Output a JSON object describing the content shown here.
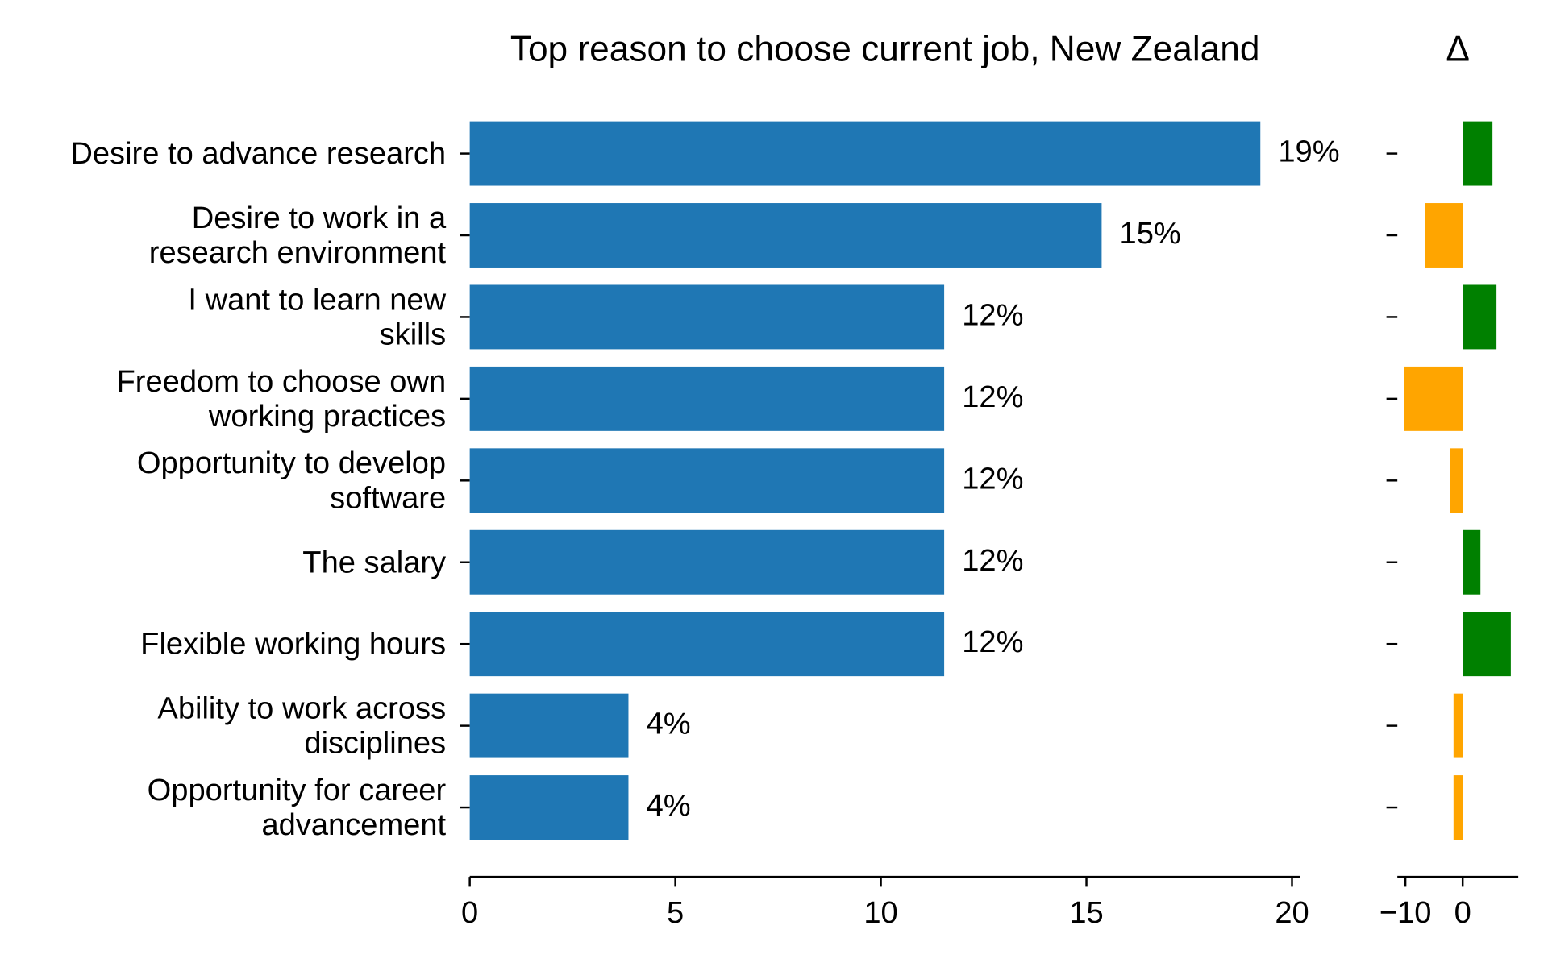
{
  "chart_data": [
    {
      "type": "hbar",
      "title": "Top reason to choose current job, New Zealand",
      "categories": [
        "Desire to advance research",
        "Desire to work in a\nresearch environment",
        "I want to learn new\nskills",
        "Freedom to choose own\nworking practices",
        "Opportunity to develop\nsoftware",
        "The salary",
        "Flexible working hours",
        "Ability to work across\ndisciplines",
        "Opportunity for career\nadvancement"
      ],
      "values": [
        19.23,
        15.37,
        11.54,
        11.54,
        11.54,
        11.54,
        11.54,
        3.86,
        3.86
      ],
      "value_labels": [
        "19%",
        "15%",
        "12%",
        "12%",
        "12%",
        "12%",
        "12%",
        "4%",
        "4%"
      ],
      "color": "#1f77b4",
      "xlim": [
        0,
        20.2
      ],
      "xticks": [
        0,
        5,
        10,
        15,
        20
      ]
    },
    {
      "type": "delta",
      "title": "Δ",
      "values": [
        5.2,
        -6.6,
        5.9,
        -10.2,
        -2.2,
        3.1,
        8.4,
        -1.6,
        -1.6
      ],
      "positive_color": "#008000",
      "negative_color": "#ffa500",
      "xlim": [
        -11.4,
        9.7
      ],
      "xticks": [
        {
          "value": -10,
          "label": "−10"
        },
        0
      ]
    }
  ]
}
